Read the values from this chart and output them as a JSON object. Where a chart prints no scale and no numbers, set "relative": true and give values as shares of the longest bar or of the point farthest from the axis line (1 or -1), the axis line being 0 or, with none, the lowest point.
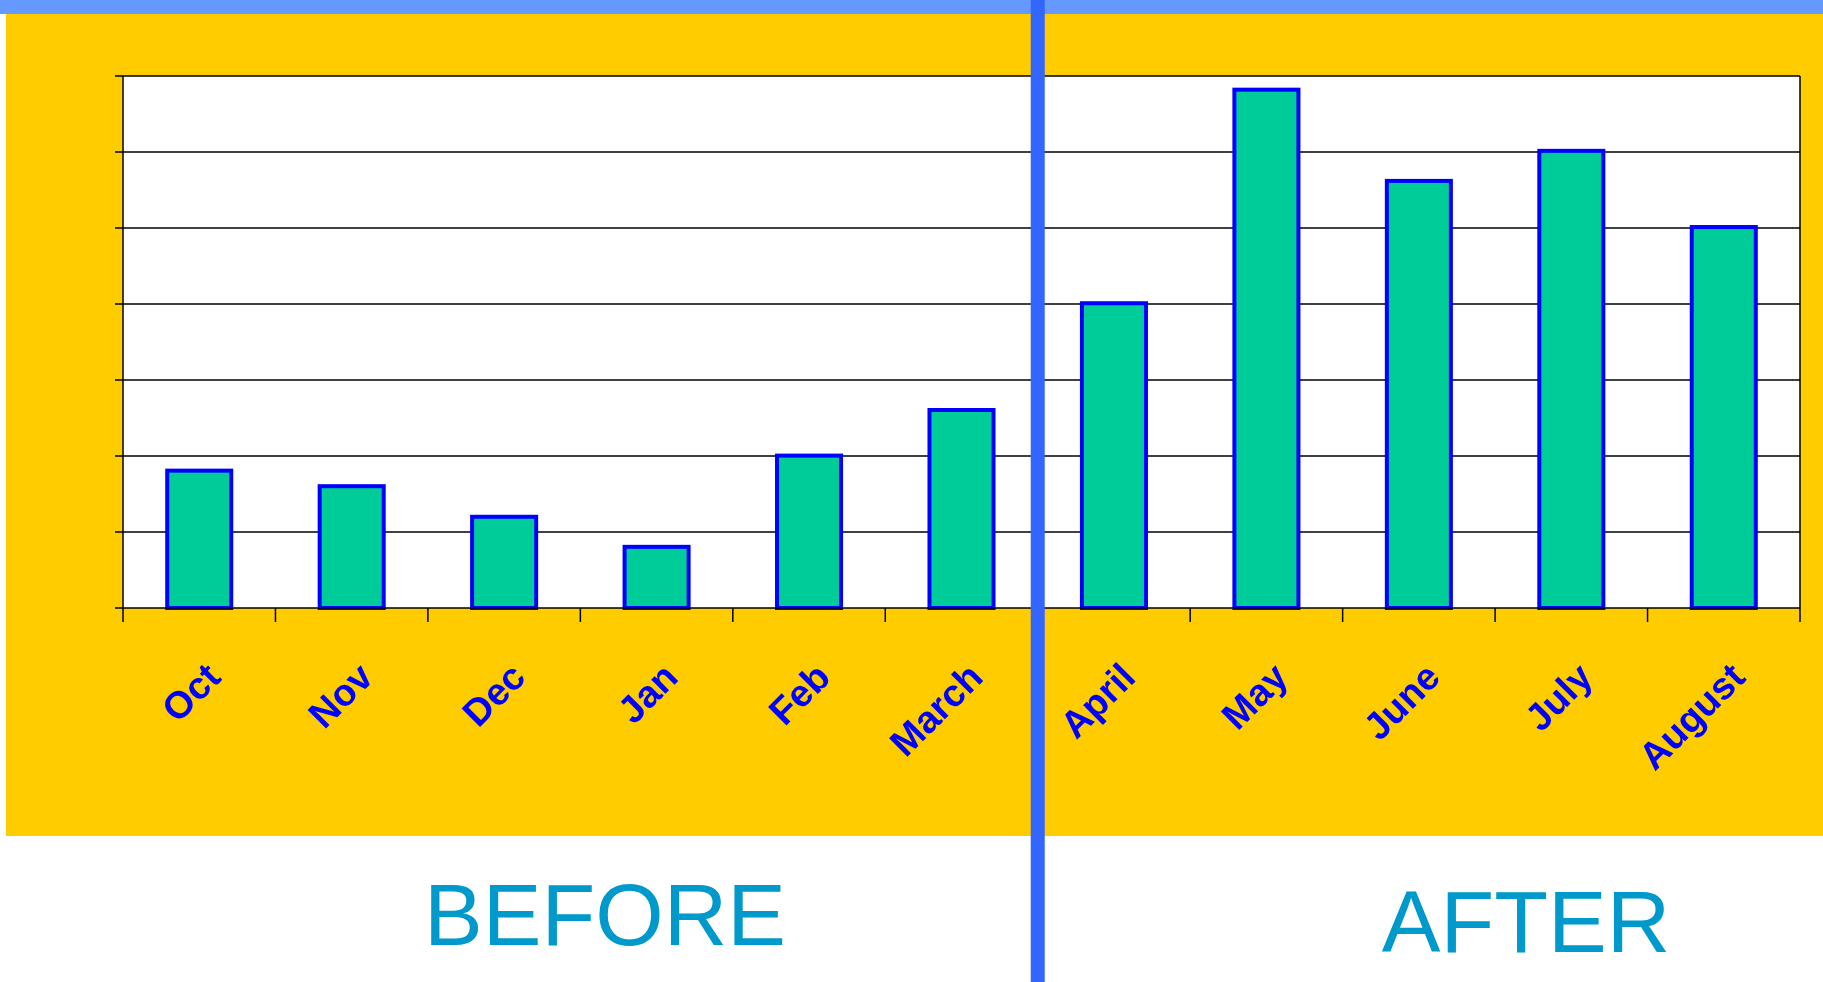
{
  "chart_data": {
    "type": "bar",
    "relative": true,
    "categories": [
      "Oct",
      "Nov",
      "Dec",
      "Jan",
      "Feb",
      "March",
      "April",
      "May",
      "June",
      "July",
      "August"
    ],
    "values": [
      0.265,
      0.235,
      0.176,
      0.118,
      0.294,
      0.382,
      0.588,
      1,
      0.824,
      0.882,
      0.735
    ],
    "color": "#00cc99",
    "grid": true,
    "ref_lines": [
      {
        "axis": "x",
        "value": "April",
        "color": "#3366ff"
      }
    ],
    "annotations": [
      "BEFORE",
      "AFTER"
    ]
  }
}
